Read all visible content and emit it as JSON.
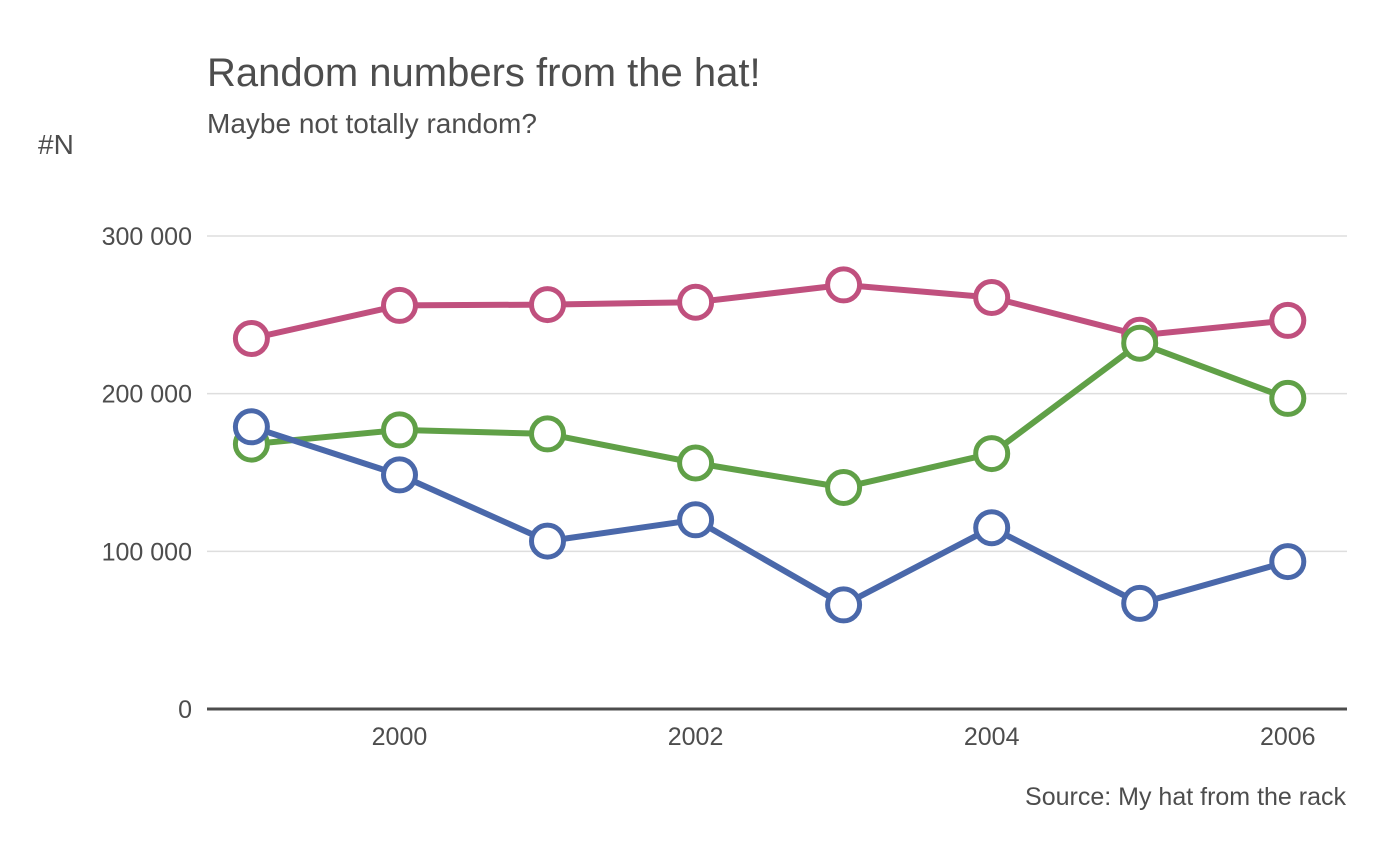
{
  "chart_data": {
    "type": "line",
    "title": "Random numbers from the hat!",
    "subtitle": "Maybe not totally random?",
    "ylabel": "#N",
    "xlabel": "",
    "caption": "Source: My hat from the rack",
    "x": [
      1999,
      2000,
      2001,
      2002,
      2003,
      2004,
      2005,
      2006
    ],
    "xticks": [
      2000,
      2002,
      2004,
      2006
    ],
    "xtick_labels": [
      "2000",
      "2002",
      "2004",
      "2006"
    ],
    "yticks": [
      0,
      100000,
      200000,
      300000
    ],
    "ytick_labels": [
      "0",
      "100 000",
      "200 000",
      "300 000"
    ],
    "xlim": [
      1998.7,
      2006.4
    ],
    "ylim": [
      0,
      300000
    ],
    "grid": "horizontal",
    "legend": "none",
    "series": [
      {
        "color": "#c0507e",
        "values": [
          235000,
          256000,
          256500,
          258000,
          269000,
          261000,
          237000,
          246500
        ]
      },
      {
        "color": "#60a047",
        "values": [
          168000,
          177000,
          174500,
          156000,
          140500,
          162000,
          232000,
          197000
        ]
      },
      {
        "color": "#4a68aa",
        "values": [
          179000,
          148500,
          106500,
          120000,
          66000,
          115000,
          67000,
          93500
        ]
      }
    ]
  }
}
